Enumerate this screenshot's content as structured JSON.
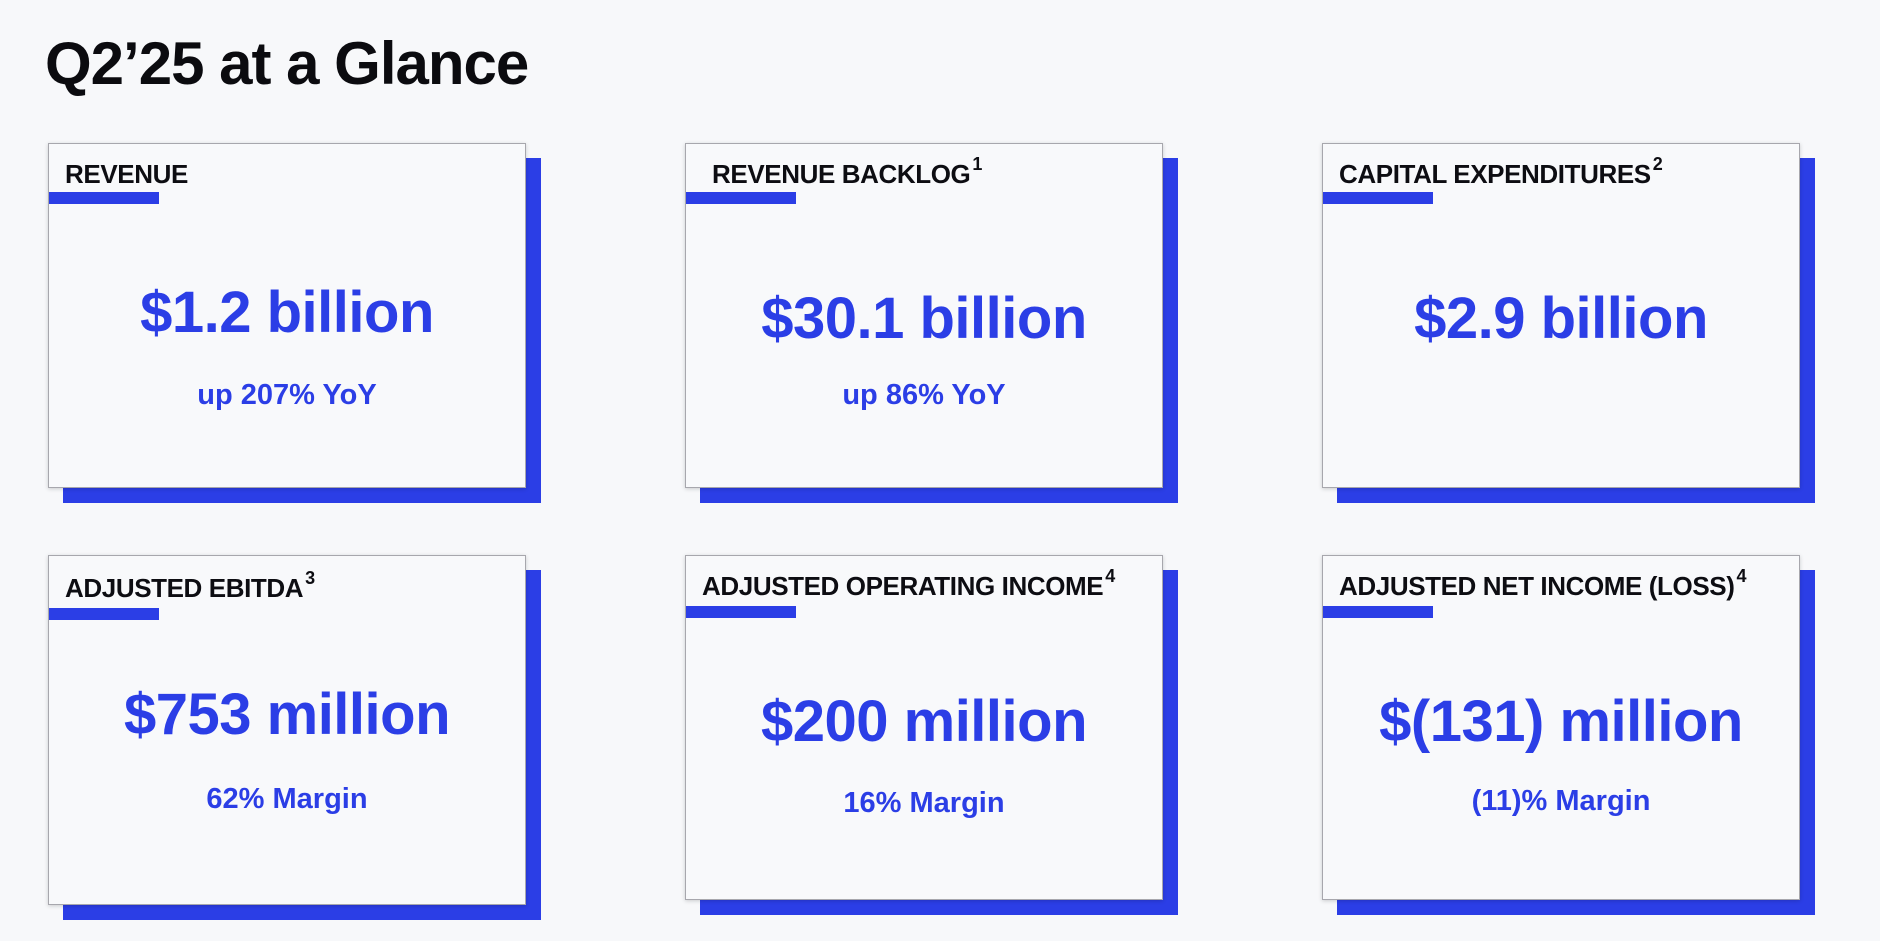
{
  "title": "Q2’25 at a Glance",
  "cards": [
    {
      "title": "REVENUE",
      "footnote": "",
      "value": "$1.2 billion",
      "subtext": "up 207% YoY"
    },
    {
      "title": "REVENUE BACKLOG",
      "footnote": "1",
      "value": "$30.1 billion",
      "subtext": "up 86% YoY"
    },
    {
      "title": "CAPITAL EXPENDITURES",
      "footnote": "2",
      "value": "$2.9 billion",
      "subtext": ""
    },
    {
      "title": "ADJUSTED EBITDA",
      "footnote": "3",
      "value": "$753 million",
      "subtext": "62% Margin"
    },
    {
      "title": "ADJUSTED OPERATING INCOME",
      "footnote": "4",
      "value": "$200 million",
      "subtext": "16% Margin"
    },
    {
      "title": "ADJUSTED NET INCOME (LOSS)",
      "footnote": "4",
      "value": "$(131) million",
      "subtext": "(11)% Margin"
    }
  ],
  "colors": {
    "accent": "#2b3ee6",
    "title_text": "#0b0b0f",
    "card_background": "#f8f9fb",
    "page_background": "#f7f8fa"
  }
}
